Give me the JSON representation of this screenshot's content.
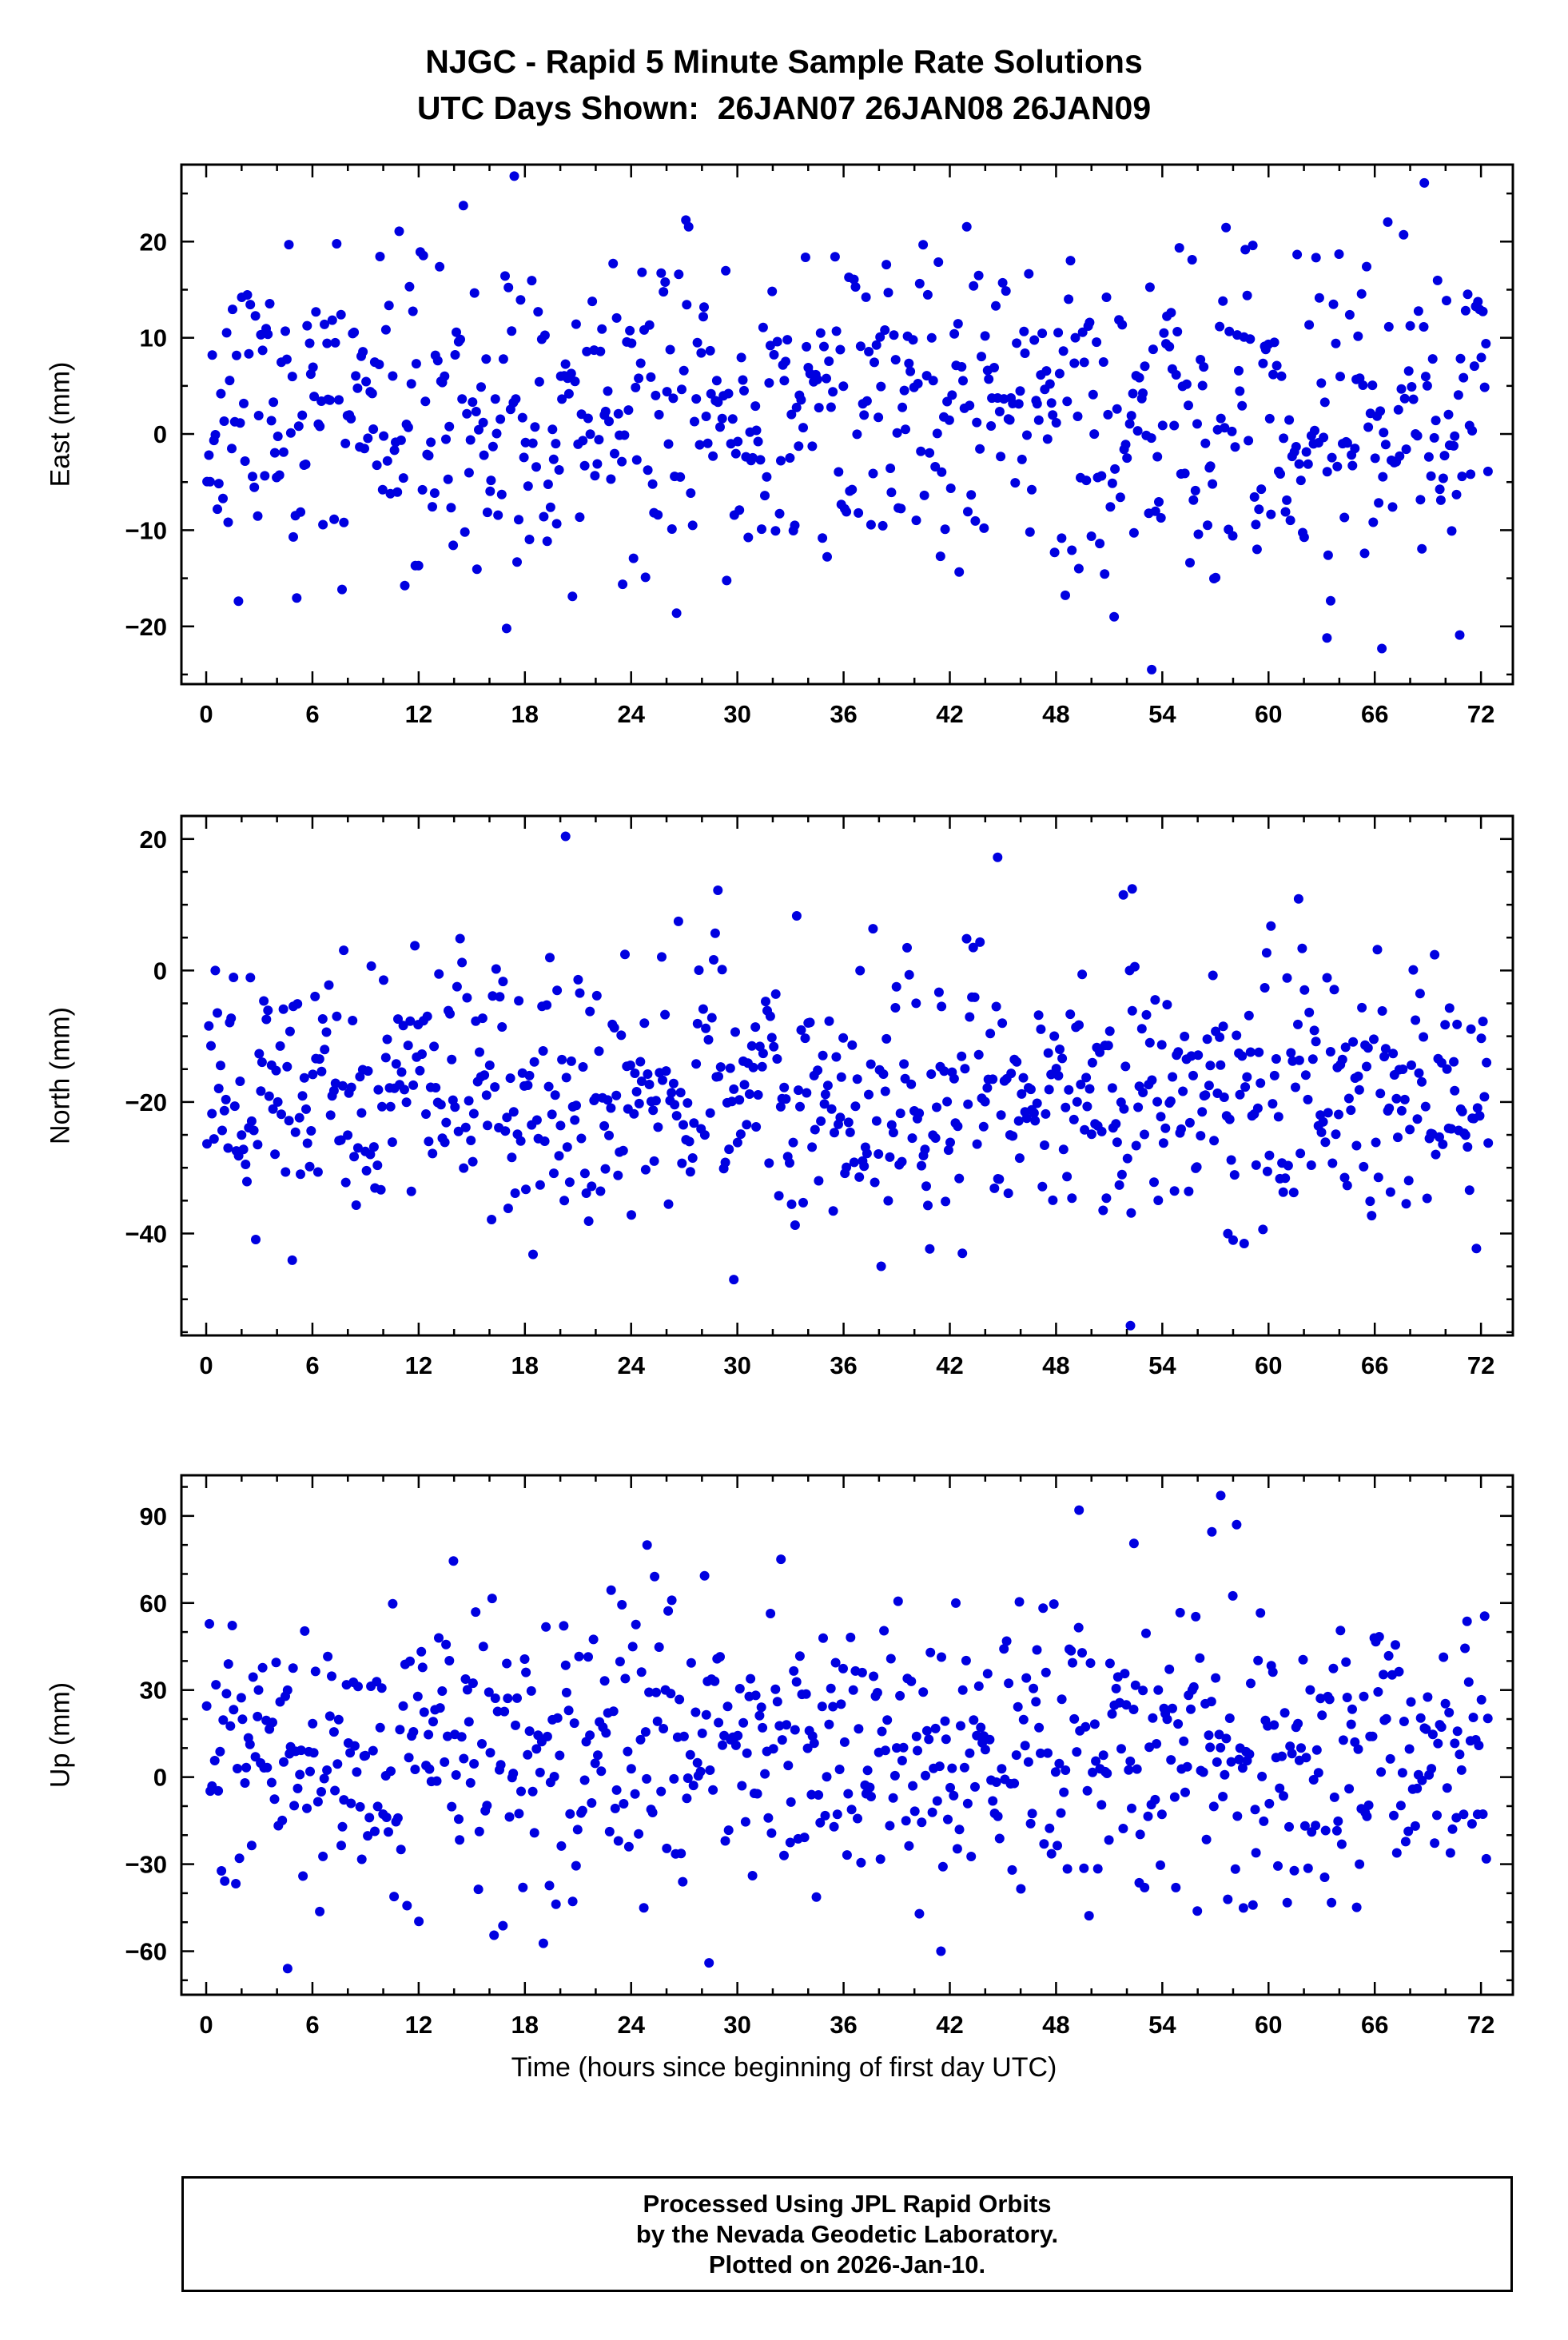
{
  "footer": {
    "line1": "Processed Using JPL Rapid Orbits",
    "line2": "by the Nevada Geodetic Laboratory.",
    "line3": "Plotted on 2026-Jan-10."
  },
  "chart_data": {
    "type": "scatter",
    "title": "NJGC - Rapid 5 Minute Sample Rate Solutions",
    "subtitle": "UTC Days Shown:  26JAN07 26JAN08 26JAN09",
    "station": "NJGC",
    "utc_days_shown": [
      "26JAN07",
      "26JAN08",
      "26JAN09"
    ],
    "marker_color": "#0000e0",
    "marker_radius_px": 6,
    "grid": false,
    "legend": false,
    "x_axis": {
      "label": "Time (hours since beginning of first day UTC)",
      "min": -1.4,
      "max": 73.8,
      "major_ticks": [
        0,
        6,
        12,
        18,
        24,
        30,
        36,
        42,
        48,
        54,
        60,
        66,
        72
      ],
      "minor_step": 2
    },
    "panels": [
      {
        "name": "East",
        "ylabel": "East (mm)",
        "y_min": -26,
        "y_max": 28,
        "y_ticks": [
          -20,
          -10,
          0,
          10,
          20
        ],
        "y_minor_step": 5,
        "sampling": {
          "n": 740,
          "x_start": 0.05,
          "x_end": 72.4,
          "mean": 2.5,
          "std": 8.5,
          "clip_min": -21,
          "clip_max": 24,
          "seed": 11
        },
        "outliers": [
          [
            17.4,
            26.8
          ],
          [
            68.8,
            26.1
          ],
          [
            53.4,
            -24.5
          ],
          [
            66.4,
            -22.3
          ],
          [
            63.3,
            -21.2
          ],
          [
            70.8,
            -20.9
          ]
        ]
      },
      {
        "name": "North",
        "ylabel": "North (mm)",
        "y_min": -55.5,
        "y_max": 23.5,
        "y_ticks": [
          -40,
          -20,
          0,
          20
        ],
        "y_minor_step": 5,
        "sampling": {
          "n": 740,
          "x_start": 0.05,
          "x_end": 72.4,
          "mean": -18,
          "std": 10,
          "clip_min": -45,
          "clip_max": 10,
          "seed": 77
        },
        "outliers": [
          [
            20.3,
            20.4
          ],
          [
            44.7,
            17.2
          ],
          [
            28.9,
            12.2
          ],
          [
            52.3,
            12.4
          ],
          [
            51.8,
            11.5
          ],
          [
            61.7,
            10.9
          ],
          [
            52.2,
            -54
          ],
          [
            29.8,
            -47
          ]
        ]
      },
      {
        "name": "Up",
        "ylabel": "Up (mm)",
        "y_min": -75,
        "y_max": 104,
        "y_ticks": [
          -60,
          -30,
          0,
          30,
          60,
          90
        ],
        "y_minor_step": 10,
        "sampling": {
          "n": 720,
          "x_start": 0.05,
          "x_end": 72.4,
          "mean": 8,
          "std": 24,
          "clip_min": -58,
          "clip_max": 78,
          "seed": 1234
        },
        "outliers": [
          [
            57.3,
            97
          ],
          [
            49.3,
            92
          ],
          [
            58.2,
            87
          ],
          [
            56.8,
            84.5
          ],
          [
            52.4,
            80.5
          ],
          [
            24.9,
            80
          ],
          [
            4.6,
            -66
          ],
          [
            28.4,
            -64
          ],
          [
            41.5,
            -60
          ]
        ]
      }
    ]
  }
}
